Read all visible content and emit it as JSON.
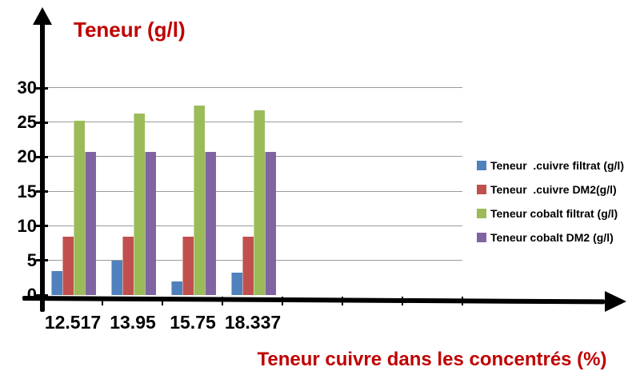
{
  "chart_data": {
    "type": "bar",
    "title": "",
    "ylabel": "Teneur (g/l)",
    "xlabel": "Teneur cuivre dans les concentrés (%)",
    "categories": [
      "12.517",
      "13.95",
      "15.75",
      "18.337"
    ],
    "series": [
      {
        "name": "Teneur  .cuivre filtrat (g/l)",
        "color": "#4F81BD",
        "values": [
          3.5,
          5,
          2,
          3.3
        ]
      },
      {
        "name": "Teneur  .cuivre DM2(g/l)",
        "color": "#C0504D",
        "values": [
          8.5,
          8.5,
          8.5,
          8.5
        ]
      },
      {
        "name": "Teneur cobalt filtrat (g/l)",
        "color": "#9BBB59",
        "values": [
          25.2,
          26.3,
          27.4,
          26.7
        ]
      },
      {
        "name": "Teneur cobalt DM2 (g/l)",
        "color": "#8064A2",
        "values": [
          20.7,
          20.7,
          20.7,
          20.7
        ]
      }
    ],
    "ylim": [
      0,
      30
    ],
    "y_ticks": [
      0,
      5,
      10,
      15,
      20,
      25,
      30
    ],
    "grid": true,
    "legend_position": "right",
    "colors": {
      "axis": "#000000",
      "gridline": "#9a9a9a",
      "titles": "#C00000",
      "tick_text": "#000000"
    }
  }
}
